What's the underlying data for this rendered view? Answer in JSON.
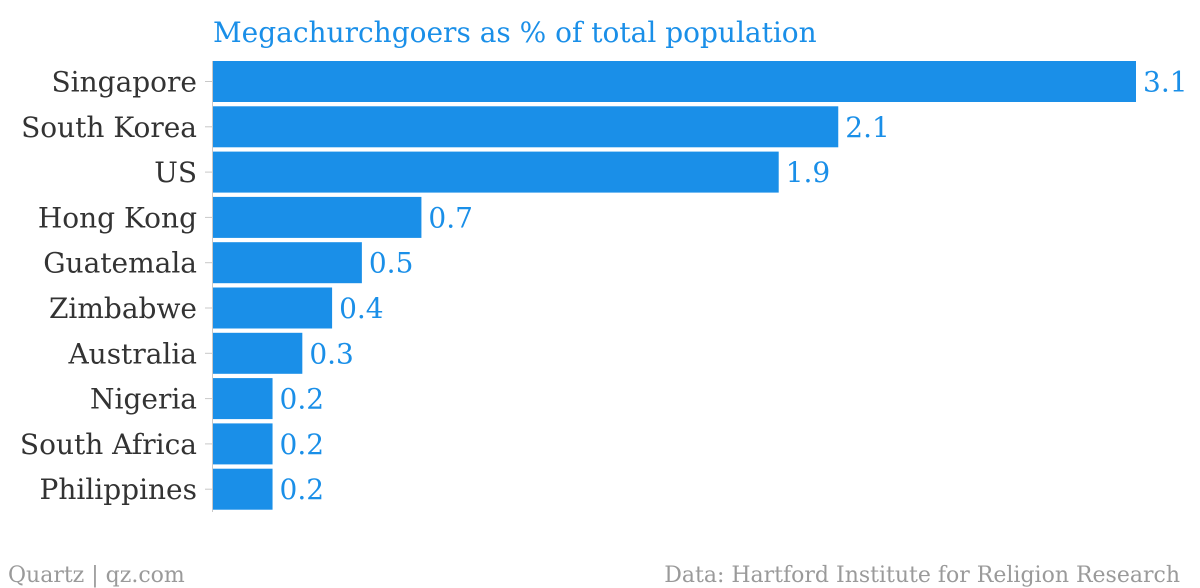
{
  "chart_data": {
    "type": "bar",
    "orientation": "horizontal",
    "title": "Megachurchgoers as % of total population",
    "categories": [
      "Singapore",
      "South Korea",
      "US",
      "Hong Kong",
      "Guatemala",
      "Zimbabwe",
      "Australia",
      "Nigeria",
      "South Africa",
      "Philippines"
    ],
    "values": [
      3.1,
      2.1,
      1.9,
      0.7,
      0.5,
      0.4,
      0.3,
      0.2,
      0.2,
      0.2
    ],
    "value_labels": [
      "3.1",
      "2.1",
      "1.9",
      "0.7",
      "0.5",
      "0.4",
      "0.3",
      "0.2",
      "0.2",
      "0.2"
    ],
    "xlim": [
      0,
      3.1
    ],
    "grid": false,
    "bar_color": "#1a8fe8",
    "value_label_color": "#1a8fe8",
    "label_color": "#333333"
  },
  "footer": {
    "credit": "Quartz | qz.com",
    "source": "Data: Hartford Institute for Religion Research"
  }
}
